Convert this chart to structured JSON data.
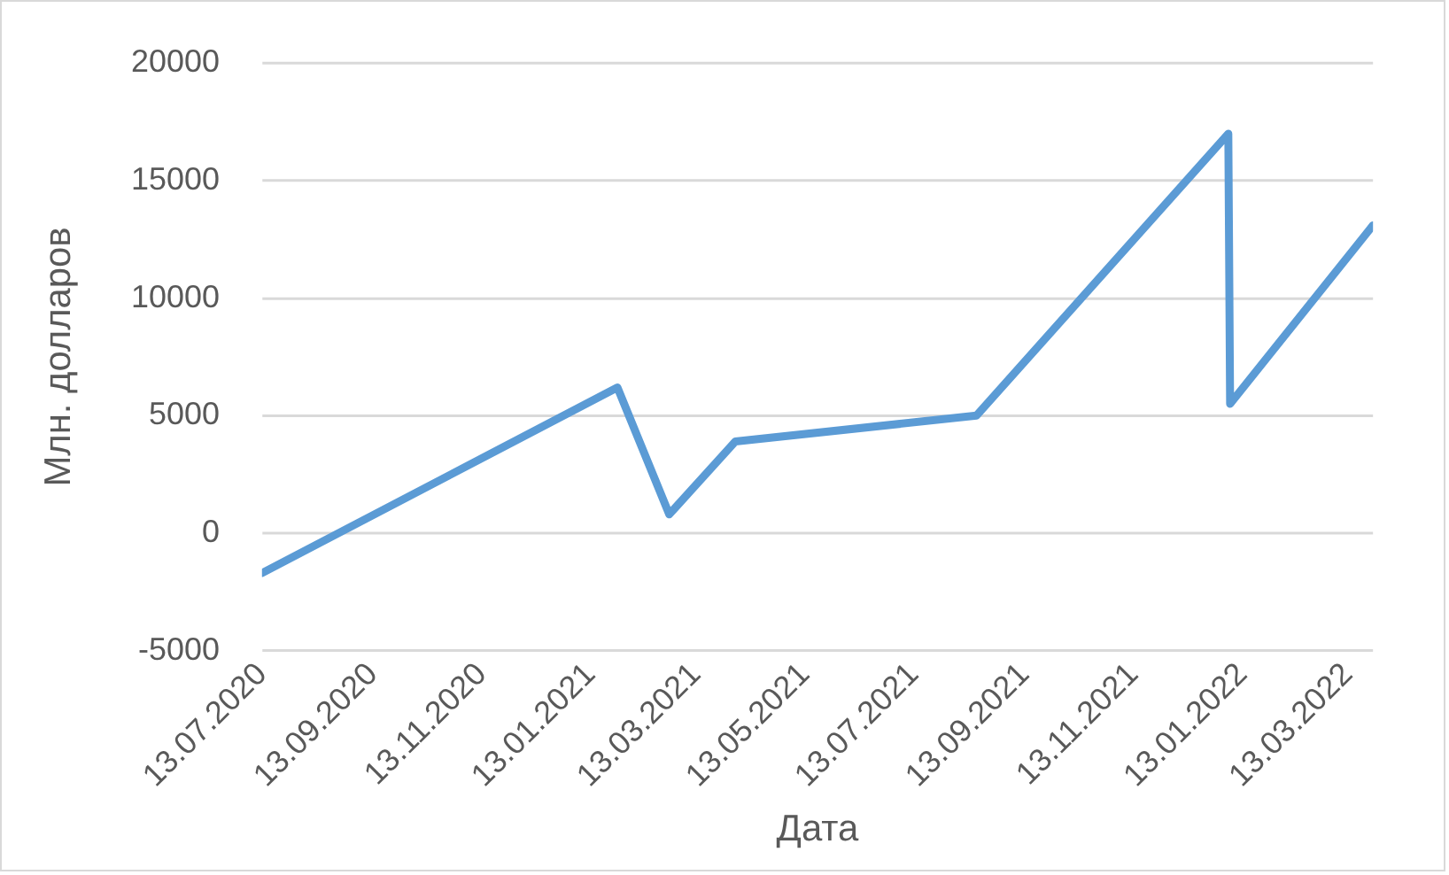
{
  "chart_data": {
    "type": "line",
    "xlabel": "Дата",
    "ylabel": "Млн. долларов",
    "x": [
      "2020-07-13",
      "2021-01-28",
      "2021-02-26",
      "2021-04-04",
      "2021-08-17",
      "2022-01-05",
      "2022-01-06",
      "2022-03-27"
    ],
    "series": [
      {
        "color": "#5b9bd5",
        "values": [
          -1700,
          6200,
          800,
          3900,
          5000,
          17000,
          5500,
          13100
        ]
      }
    ],
    "xlim": [
      "2020-07-13",
      "2022-03-27"
    ],
    "xticks": [
      {
        "value": "2020-07-13",
        "label": "13.07.2020"
      },
      {
        "value": "2020-09-13",
        "label": "13.09.2020"
      },
      {
        "value": "2020-11-13",
        "label": "13.11.2020"
      },
      {
        "value": "2021-01-13",
        "label": "13.01.2021"
      },
      {
        "value": "2021-03-13",
        "label": "13.03.2021"
      },
      {
        "value": "2021-05-13",
        "label": "13.05.2021"
      },
      {
        "value": "2021-07-13",
        "label": "13.07.2021"
      },
      {
        "value": "2021-09-13",
        "label": "13.09.2021"
      },
      {
        "value": "2021-11-13",
        "label": "13.11.2021"
      },
      {
        "value": "2022-01-13",
        "label": "13.01.2022"
      },
      {
        "value": "2022-03-13",
        "label": "13.03.2022"
      }
    ],
    "ylim": [
      -5000,
      20000
    ],
    "yticks": [
      -5000,
      0,
      5000,
      10000,
      15000,
      20000
    ],
    "grid": "y",
    "legend": false,
    "marker": "none",
    "line_style": "solid"
  }
}
